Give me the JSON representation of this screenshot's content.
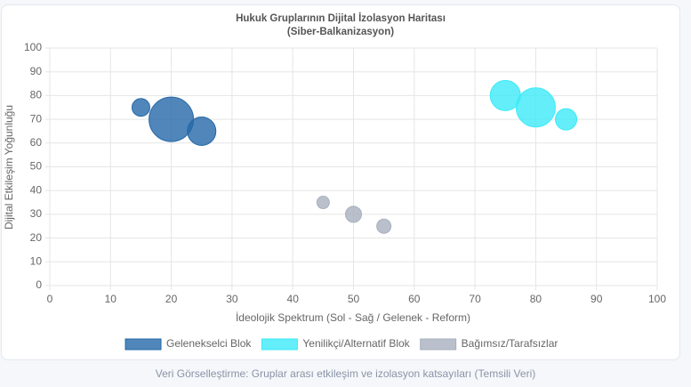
{
  "chart_data": {
    "type": "bubble",
    "title": [
      "Hukuk Gruplarının Dijital İzolasyon Haritası",
      "(Siber-Balkanizasyon)"
    ],
    "x_label": "İdeolojik Spektrum (Sol - Sağ / Gelenek - Reform)",
    "y_label": "Dijital Etkileşim Yoğunluğu",
    "footer": "Veri Görselleştirme: Gruplar arası etkileşim ve izolasyon katsayıları (Temsili Veri)",
    "xlim": [
      0,
      100
    ],
    "xticks": [
      0,
      10,
      20,
      30,
      40,
      50,
      60,
      70,
      80,
      90,
      100
    ],
    "ylim": [
      0,
      100
    ],
    "yticks": [
      0,
      10,
      20,
      30,
      40,
      50,
      60,
      70,
      80,
      90,
      100
    ],
    "grid": true,
    "legend": "bottom",
    "series": [
      {
        "name": "Gelenekselci Blok",
        "color": "#2468a8",
        "x": [
          15,
          20,
          25
        ],
        "y": [
          75,
          70,
          65
        ],
        "sizes": [
          10,
          25,
          16
        ]
      },
      {
        "name": "Yenilikçi/Alternatif Blok",
        "color": "#3ceaf7",
        "x": [
          75,
          80,
          85
        ],
        "y": [
          80,
          75,
          70
        ],
        "sizes": [
          17,
          22,
          12
        ]
      },
      {
        "name": "Bağımsız/Tarafsızlar",
        "color": "#a7b0bf",
        "x": [
          45,
          50,
          55
        ],
        "y": [
          35,
          30,
          25
        ],
        "sizes": [
          7,
          9,
          8
        ]
      }
    ]
  }
}
